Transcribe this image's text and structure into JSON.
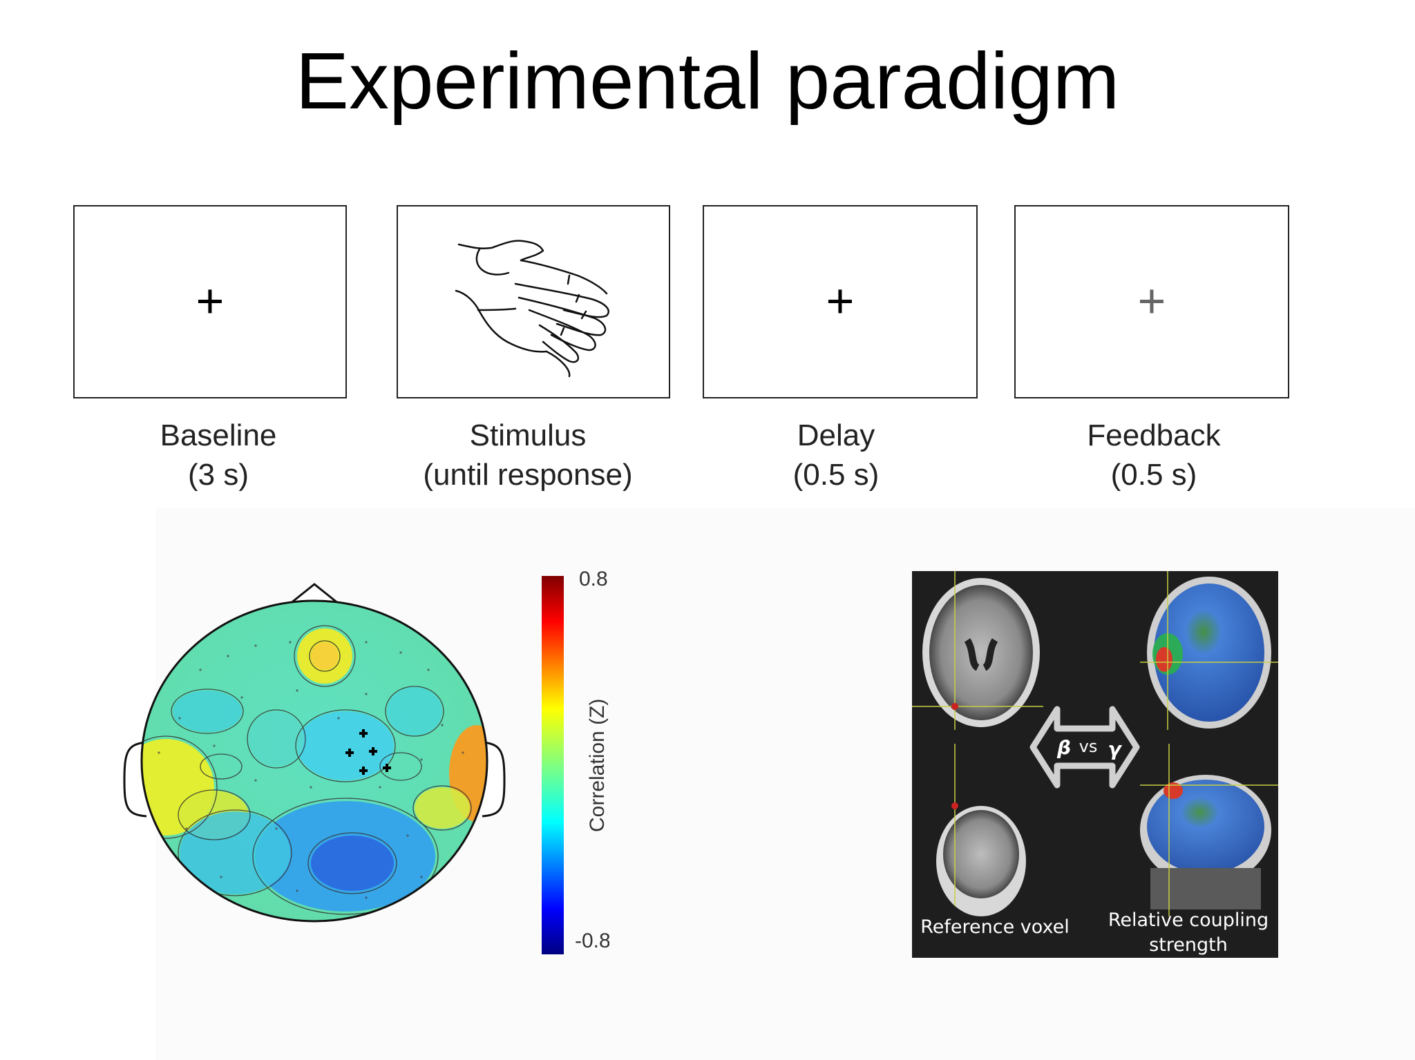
{
  "title": "Experimental paradigm",
  "phases": [
    {
      "label": "Baseline",
      "duration": "(3 s)",
      "symbol": "+"
    },
    {
      "label": "Stimulus",
      "duration": "(until response)",
      "symbol": "hand-drawing"
    },
    {
      "label": "Delay",
      "duration": "(0.5 s)",
      "symbol": "+"
    },
    {
      "label": "Feedback",
      "duration": "(0.5 s)",
      "symbol": "+"
    }
  ],
  "colorbar": {
    "max_label": "0.8",
    "min_label": "-0.8",
    "axis_label": "Correlation (Z)"
  },
  "mri": {
    "left_caption": "Reference voxel",
    "right_caption_line1": "Relative coupling",
    "right_caption_line2": "strength",
    "beta": "β",
    "vs": "vs",
    "gamma": "γ"
  }
}
